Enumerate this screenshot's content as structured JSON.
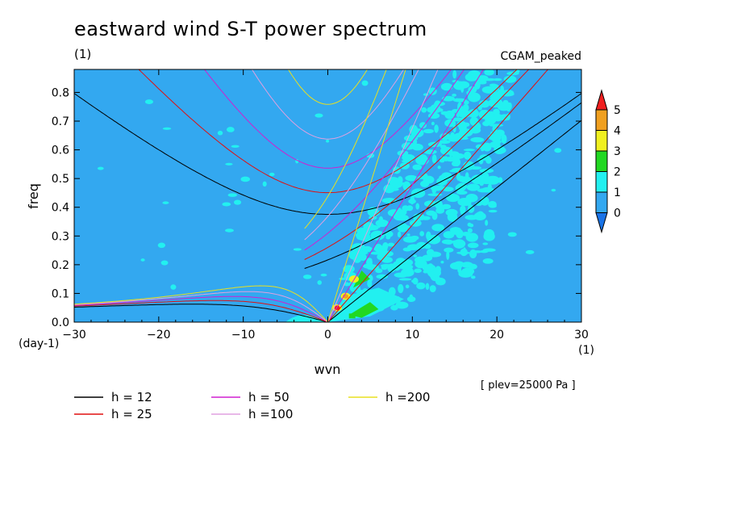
{
  "chart_data": {
    "type": "contour",
    "title": "eastward wind S-T power spectrum",
    "units_top": "(1)",
    "experiment": "CGAM_peaked",
    "xlabel": "wvn",
    "ylabel": "freq",
    "x_unit": "(1)",
    "y_unit": "(day-1)",
    "xlim": [
      -30,
      30
    ],
    "ylim": [
      0.0,
      0.88
    ],
    "x_ticks": [
      -30,
      -20,
      -10,
      0,
      10,
      20,
      30
    ],
    "y_ticks": [
      0.0,
      0.1,
      0.2,
      0.3,
      0.4,
      0.5,
      0.6,
      0.7,
      0.8
    ],
    "x_tick_labels": [
      "−30",
      "−20",
      "−10",
      "0",
      "10",
      "20",
      "30"
    ],
    "y_tick_labels": [
      "0.0",
      "0.1",
      "0.2",
      "0.3",
      "0.4",
      "0.5",
      "0.6",
      "0.7",
      "0.8"
    ],
    "annotation": "[ plev=25000 Pa ]",
    "colorbar": {
      "levels": [
        0,
        1,
        2,
        3,
        4,
        5
      ],
      "labels": [
        "0",
        "1",
        "2",
        "3",
        "4",
        "5"
      ],
      "colors": [
        "#1a73e6",
        "#33a8f0",
        "#22f0f0",
        "#22d822",
        "#f0f020",
        "#f0a020",
        "#f02020"
      ]
    },
    "dispersion_curves": [
      {
        "label": "h = 12",
        "h": 12,
        "color": "#000000"
      },
      {
        "label": "h = 25",
        "h": 25,
        "color": "#e01010"
      },
      {
        "label": "h = 50",
        "h": 50,
        "color": "#d020d0"
      },
      {
        "label": "h =100",
        "h": 100,
        "color": "#e0a0e0"
      },
      {
        "label": "h =200",
        "h": 200,
        "color": "#e8e020"
      }
    ],
    "spectral_peaks": [
      {
        "wvn": 1,
        "freq": 0.05,
        "level": 5
      },
      {
        "wvn": 2,
        "freq": 0.09,
        "level": 4
      },
      {
        "wvn": 3,
        "freq": 0.15,
        "level": 3
      }
    ]
  }
}
